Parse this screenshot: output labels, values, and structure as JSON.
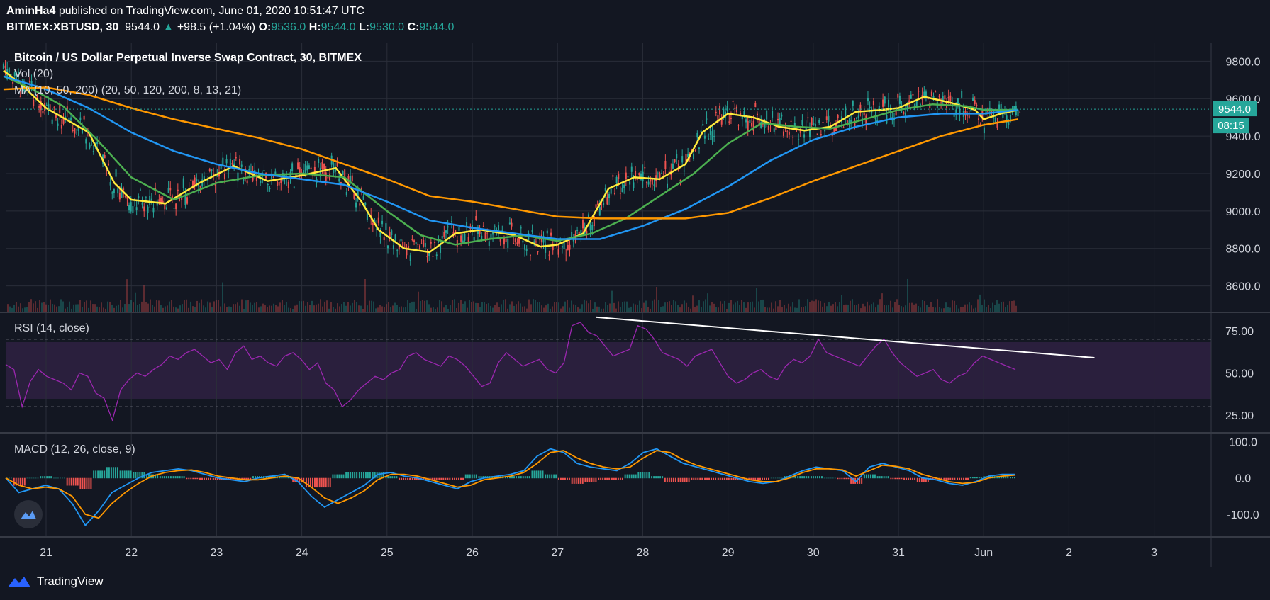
{
  "header": {
    "author": "AminHa4",
    "published_text": "published on TradingView.com, June 01, 2020 10:51:47 UTC",
    "symbol": "BITMEX:XBTUSD, 30",
    "last": "9544.0",
    "change": "+98.5 (+1.04%)",
    "o_label": "O:",
    "o_value": "9536.0",
    "h_label": "H:",
    "h_value": "9544.0",
    "l_label": "L:",
    "l_value": "9530.0",
    "c_label": "C:",
    "c_value": "9544.0"
  },
  "panes": {
    "price_title": "Bitcoin / US Dollar Perpetual Inverse Swap Contract, 30, BITMEX",
    "vol_title": "Vol (20)",
    "ma_title": "MA (10, 50, 200) (20, 50, 120, 200, 8, 13, 21)",
    "rsi_title": "RSI (14, close)",
    "macd_title": "MACD (12, 26, close, 9)"
  },
  "badges": {
    "price": "9544.0",
    "countdown": "08:15"
  },
  "footer": {
    "brand": "TradingView"
  },
  "colors": {
    "background": "#131722",
    "grid": "#2a2e39",
    "up": "#26a69a",
    "down": "#ef5350",
    "ma_yellow": "#ffeb3b",
    "ma_green": "#4caf50",
    "ma_blue": "#2196f3",
    "ma_orange": "#ff9800",
    "rsi": "#9c27b0",
    "rsi_band": "#2a1f3d",
    "macd": "#2196f3",
    "signal": "#ff9800",
    "trendline": "#ffffff"
  },
  "chart_data": [
    {
      "type": "line",
      "title": "Bitcoin / US Dollar Perpetual Inverse Swap Contract, 30, BITMEX",
      "x": [
        "21",
        "22",
        "23",
        "24",
        "25",
        "26",
        "27",
        "28",
        "29",
        "30",
        "31",
        "Jun",
        "2",
        "3"
      ],
      "ylim": [
        8500,
        9900
      ],
      "y_ticks": [
        "9800.0",
        "9600.0",
        "9400.0",
        "9200.0",
        "9000.0",
        "8800.0",
        "8600.0"
      ],
      "last_price": 9544.0,
      "series": [
        {
          "name": "MA 20",
          "color": "#ffeb3b",
          "points": [
            [
              20.5,
              9750
            ],
            [
              20.7,
              9680
            ],
            [
              21.0,
              9550
            ],
            [
              21.5,
              9420
            ],
            [
              21.8,
              9150
            ],
            [
              22.0,
              9060
            ],
            [
              22.4,
              9040
            ],
            [
              22.8,
              9150
            ],
            [
              23.2,
              9240
            ],
            [
              23.6,
              9160
            ],
            [
              24.0,
              9190
            ],
            [
              24.4,
              9230
            ],
            [
              24.7,
              9050
            ],
            [
              24.9,
              8900
            ],
            [
              25.2,
              8800
            ],
            [
              25.5,
              8780
            ],
            [
              25.8,
              8880
            ],
            [
              26.1,
              8900
            ],
            [
              26.5,
              8870
            ],
            [
              26.8,
              8810
            ],
            [
              27.0,
              8820
            ],
            [
              27.3,
              8880
            ],
            [
              27.6,
              9120
            ],
            [
              27.9,
              9180
            ],
            [
              28.2,
              9170
            ],
            [
              28.5,
              9250
            ],
            [
              28.7,
              9420
            ],
            [
              29.0,
              9520
            ],
            [
              29.3,
              9500
            ],
            [
              29.6,
              9450
            ],
            [
              29.9,
              9430
            ],
            [
              30.2,
              9450
            ],
            [
              30.5,
              9530
            ],
            [
              30.8,
              9540
            ],
            [
              31.0,
              9550
            ],
            [
              31.3,
              9610
            ],
            [
              31.6,
              9580
            ],
            [
              31.9,
              9540
            ],
            [
              32.0,
              9490
            ],
            [
              32.2,
              9520
            ],
            [
              32.4,
              9540
            ]
          ]
        },
        {
          "name": "MA 50",
          "color": "#4caf50",
          "points": [
            [
              20.5,
              9720
            ],
            [
              20.8,
              9660
            ],
            [
              21.2,
              9560
            ],
            [
              21.6,
              9380
            ],
            [
              22.0,
              9180
            ],
            [
              22.5,
              9060
            ],
            [
              23.0,
              9150
            ],
            [
              23.5,
              9190
            ],
            [
              24.0,
              9200
            ],
            [
              24.5,
              9180
            ],
            [
              25.0,
              9000
            ],
            [
              25.4,
              8870
            ],
            [
              25.8,
              8820
            ],
            [
              26.2,
              8850
            ],
            [
              26.6,
              8870
            ],
            [
              27.0,
              8840
            ],
            [
              27.4,
              8880
            ],
            [
              27.8,
              8960
            ],
            [
              28.2,
              9080
            ],
            [
              28.6,
              9200
            ],
            [
              29.0,
              9360
            ],
            [
              29.4,
              9470
            ],
            [
              29.8,
              9450
            ],
            [
              30.2,
              9440
            ],
            [
              30.6,
              9490
            ],
            [
              31.0,
              9540
            ],
            [
              31.4,
              9570
            ],
            [
              31.8,
              9560
            ],
            [
              32.0,
              9540
            ],
            [
              32.4,
              9540
            ]
          ]
        },
        {
          "name": "MA 120",
          "color": "#2196f3",
          "points": [
            [
              20.5,
              9720
            ],
            [
              21.0,
              9650
            ],
            [
              21.5,
              9550
            ],
            [
              22.0,
              9420
            ],
            [
              22.5,
              9320
            ],
            [
              23.0,
              9250
            ],
            [
              23.5,
              9200
            ],
            [
              24.0,
              9170
            ],
            [
              24.5,
              9140
            ],
            [
              25.0,
              9050
            ],
            [
              25.5,
              8950
            ],
            [
              26.0,
              8910
            ],
            [
              26.5,
              8880
            ],
            [
              27.0,
              8850
            ],
            [
              27.5,
              8850
            ],
            [
              28.0,
              8920
            ],
            [
              28.5,
              9010
            ],
            [
              29.0,
              9130
            ],
            [
              29.5,
              9270
            ],
            [
              30.0,
              9380
            ],
            [
              30.5,
              9450
            ],
            [
              31.0,
              9500
            ],
            [
              31.5,
              9520
            ],
            [
              32.0,
              9520
            ],
            [
              32.4,
              9540
            ]
          ]
        },
        {
          "name": "MA 200",
          "color": "#ff9800",
          "points": [
            [
              20.5,
              9650
            ],
            [
              21.0,
              9660
            ],
            [
              21.5,
              9620
            ],
            [
              22.0,
              9550
            ],
            [
              22.5,
              9490
            ],
            [
              23.0,
              9440
            ],
            [
              23.5,
              9390
            ],
            [
              24.0,
              9330
            ],
            [
              24.5,
              9250
            ],
            [
              25.0,
              9170
            ],
            [
              25.5,
              9080
            ],
            [
              26.0,
              9050
            ],
            [
              26.5,
              9010
            ],
            [
              27.0,
              8970
            ],
            [
              27.5,
              8960
            ],
            [
              28.0,
              8960
            ],
            [
              28.5,
              8960
            ],
            [
              29.0,
              8990
            ],
            [
              29.5,
              9070
            ],
            [
              30.0,
              9160
            ],
            [
              30.5,
              9240
            ],
            [
              31.0,
              9320
            ],
            [
              31.5,
              9400
            ],
            [
              32.0,
              9460
            ],
            [
              32.4,
              9490
            ]
          ]
        }
      ]
    },
    {
      "type": "line",
      "title": "RSI (14, close)",
      "ylim": [
        15,
        85
      ],
      "y_ticks": [
        "75.00",
        "50.00",
        "25.00"
      ],
      "levels": [
        70,
        30
      ],
      "series": [
        {
          "name": "RSI",
          "color": "#9c27b0",
          "values": [
            55,
            52,
            30,
            45,
            52,
            48,
            46,
            44,
            40,
            50,
            48,
            38,
            35,
            22,
            40,
            46,
            50,
            48,
            52,
            55,
            60,
            58,
            62,
            64,
            60,
            56,
            58,
            52,
            62,
            66,
            58,
            60,
            56,
            54,
            60,
            62,
            58,
            52,
            56,
            44,
            40,
            30,
            34,
            40,
            44,
            48,
            46,
            50,
            52,
            60,
            62,
            58,
            56,
            54,
            60,
            58,
            54,
            48,
            42,
            44,
            56,
            62,
            58,
            54,
            56,
            58,
            52,
            50,
            56,
            78,
            80,
            74,
            72,
            66,
            60,
            62,
            64,
            78,
            76,
            70,
            62,
            60,
            58,
            54,
            60,
            62,
            64,
            56,
            48,
            44,
            46,
            50,
            52,
            48,
            46,
            54,
            58,
            56,
            60,
            70,
            62,
            60,
            58,
            56,
            54,
            60,
            66,
            70,
            62,
            56,
            52,
            48,
            50,
            52,
            46,
            44,
            48,
            50,
            56,
            60,
            58,
            56,
            54,
            52
          ]
        }
      ],
      "trendline": [
        [
          27.45,
          83
        ],
        [
          33.3,
          59
        ]
      ]
    },
    {
      "type": "line",
      "title": "MACD (12, 26, close, 9)",
      "ylim": [
        -160,
        120
      ],
      "y_ticks": [
        "100.0",
        "0.0",
        "-100.0"
      ],
      "series": [
        {
          "name": "MACD",
          "color": "#2196f3",
          "values": [
            0,
            -40,
            -30,
            -20,
            -30,
            -70,
            -130,
            -90,
            -40,
            -20,
            0,
            15,
            20,
            25,
            20,
            10,
            0,
            -5,
            -10,
            0,
            5,
            10,
            -10,
            -50,
            -80,
            -60,
            -40,
            -20,
            10,
            15,
            5,
            0,
            -10,
            -20,
            -30,
            -10,
            0,
            5,
            10,
            20,
            60,
            80,
            70,
            40,
            30,
            25,
            20,
            40,
            70,
            80,
            60,
            40,
            30,
            20,
            10,
            0,
            -10,
            -15,
            -10,
            5,
            20,
            30,
            25,
            20,
            -10,
            30,
            40,
            30,
            20,
            0,
            -5,
            -15,
            -20,
            -10,
            5,
            10,
            10
          ]
        },
        {
          "name": "Signal",
          "color": "#ff9800",
          "values": [
            0,
            -20,
            -30,
            -25,
            -30,
            -50,
            -100,
            -110,
            -70,
            -40,
            -15,
            5,
            15,
            20,
            22,
            15,
            5,
            0,
            -5,
            -5,
            0,
            5,
            0,
            -25,
            -55,
            -70,
            -55,
            -35,
            -5,
            10,
            10,
            5,
            -5,
            -15,
            -25,
            -20,
            -5,
            0,
            5,
            15,
            40,
            70,
            75,
            55,
            40,
            30,
            25,
            30,
            55,
            75,
            70,
            50,
            35,
            25,
            15,
            5,
            -5,
            -10,
            -10,
            0,
            15,
            25,
            25,
            22,
            5,
            20,
            35,
            32,
            25,
            10,
            0,
            -10,
            -15,
            -12,
            0,
            5,
            8
          ]
        }
      ]
    }
  ]
}
